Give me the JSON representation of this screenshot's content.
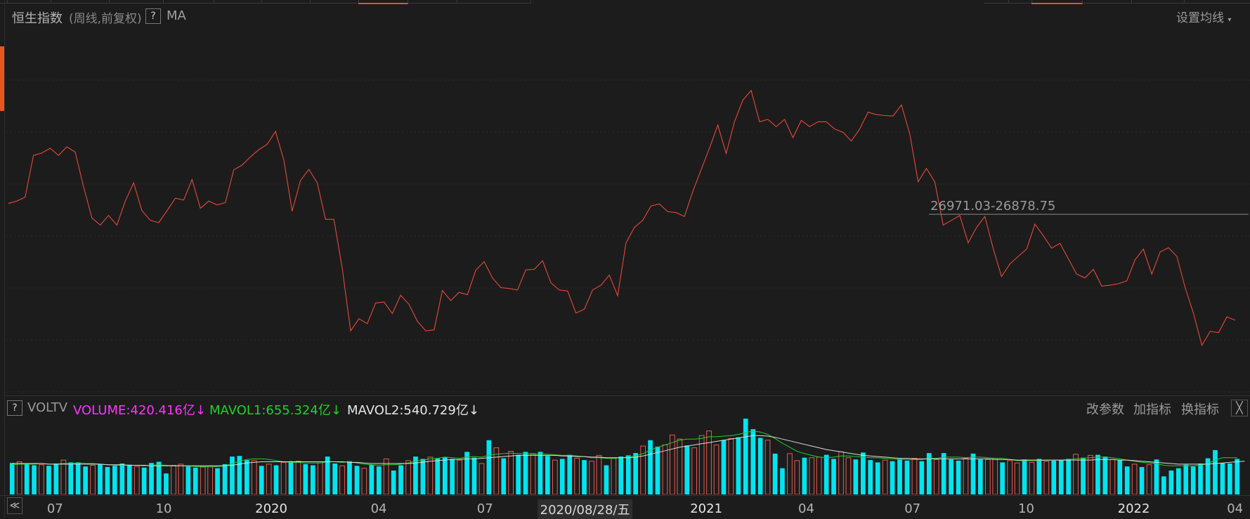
{
  "header": {
    "title": "恒生指数",
    "subtitle": "(周线,前复权)",
    "help": "?",
    "indicator": "MA",
    "settings": "设置均线"
  },
  "price_label": "26971.03-26878.75",
  "volume_panel": {
    "help": "?",
    "name": "VOLTV",
    "volume": "VOLUME:420.416亿",
    "mavol1": "MAVOL1:655.324亿",
    "mavol2": "MAVOL2:540.729亿",
    "arrow": "↓",
    "btn_params": "改参数",
    "btn_add": "加指标",
    "btn_switch": "换指标",
    "close": "╳"
  },
  "axis": {
    "scroll_left": "≪",
    "cursor_date": "2020/08/28/五"
  },
  "colors": {
    "background": "#1c1c1c",
    "price_line": "#e8483a",
    "volume_up": "#e85a50",
    "volume_down": "#00e5f0",
    "mavol1": "#22d02a",
    "mavol2": "#dcdcdc",
    "volume_label": "#ff33ff",
    "mavol1_label": "#22d02a",
    "mavol2_label": "#e6e6e6",
    "title": "#f2e6a8"
  },
  "chart_data": {
    "type": "line",
    "series": [
      {
        "name": "恒生指数",
        "values": [
          27150,
          27200,
          27280,
          28150,
          28200,
          28300,
          28150,
          28330,
          28220,
          27500,
          26850,
          26700,
          26900,
          26700,
          27200,
          27580,
          27000,
          26800,
          26750,
          27000,
          27260,
          27220,
          27650,
          27050,
          27200,
          27120,
          27170,
          27850,
          27950,
          28120,
          28270,
          28380,
          28650,
          28050,
          26990,
          27630,
          27860,
          27580,
          26820,
          26820,
          25800,
          24500,
          24750,
          24650,
          25080,
          25100,
          24860,
          25240,
          25050,
          24700,
          24500,
          24520,
          25340,
          25130,
          25300,
          25250,
          25760,
          25940,
          25600,
          25400,
          25380,
          25350,
          25770,
          25780,
          25960,
          25500,
          25350,
          25330,
          24870,
          24950,
          25350,
          25450,
          25660,
          25230,
          26330,
          26650,
          26800,
          27100,
          27140,
          26980,
          26960,
          26880,
          27400,
          27850,
          28300,
          28780,
          28190,
          28850,
          29300,
          29500,
          28850,
          28900,
          28750,
          28900,
          28520,
          28880,
          28750,
          28850,
          28850,
          28700,
          28630,
          28450,
          28700,
          29050,
          29000,
          28980,
          28970,
          29200,
          28600,
          27600,
          27880,
          27600,
          26700,
          26800,
          26900,
          26330,
          26650,
          26880,
          26210,
          25630,
          25890,
          26050,
          26200,
          26720,
          26480,
          26220,
          26320,
          26000,
          25680,
          25600,
          25780,
          25430,
          25450,
          25480,
          25540,
          25980,
          26200,
          25680,
          26140,
          26230,
          26050,
          25400,
          24860,
          24200,
          24490,
          24460,
          24790,
          24720
        ],
        "ma_start": 0
      },
      {
        "name": "VOLUME",
        "values": [
          5.4,
          5.6,
          5.3,
          5.0,
          5.1,
          4.9,
          5.3,
          5.9,
          5.5,
          5.5,
          4.8,
          5.0,
          5.2,
          4.7,
          4.9,
          5.3,
          5.1,
          4.8,
          4.6,
          5.4,
          5.6,
          3.6,
          5.0,
          5.2,
          4.8,
          4.6,
          4.7,
          4.9,
          4.5,
          5.2,
          6.5,
          6.6,
          5.9,
          5.8,
          4.9,
          5.2,
          5.0,
          5.5,
          5.7,
          5.7,
          5.2,
          5.0,
          5.6,
          6.5,
          5.3,
          4.9,
          5.7,
          4.9,
          4.5,
          5.1,
          4.8,
          6.1,
          4.1,
          5.0,
          5.8,
          6.5,
          6.1,
          6.4,
          6.2,
          6.4,
          6.1,
          5.9,
          7.3,
          6.3,
          5.3,
          9.3,
          8.0,
          6.2,
          7.4,
          6.8,
          7.3,
          7.0,
          7.3,
          6.6,
          5.9,
          6.1,
          6.8,
          6.2,
          5.9,
          5.7,
          6.7,
          5.0,
          6.2,
          6.5,
          6.7,
          7.1,
          8.3,
          9.3,
          8.2,
          8.5,
          10.2,
          9.5,
          8.4,
          8.0,
          10.1,
          10.9,
          8.5,
          9.3,
          9.6,
          9.8,
          13.0,
          11.2,
          9.7,
          9.3,
          7.0,
          4.5,
          7.0,
          5.8,
          6.3,
          6.3,
          6.4,
          6.8,
          6.1,
          7.3,
          6.3,
          6.0,
          7.2,
          5.9,
          5.5,
          5.9,
          5.7,
          6.1,
          5.8,
          6.2,
          5.7,
          7.1,
          6.0,
          7.1,
          6.0,
          5.8,
          6.2,
          7.0,
          6.0,
          6.0,
          6.2,
          5.5,
          5.8,
          5.4,
          6.0,
          5.5,
          6.1,
          5.7,
          5.8,
          5.9,
          6.1,
          6.9,
          6.3,
          6.7,
          6.8,
          6.5,
          6.0,
          5.9,
          4.8,
          5.2,
          4.7,
          5.1,
          6.0,
          3.1,
          4.1,
          4.5,
          5.1,
          4.8,
          5.3,
          6.2,
          7.6,
          5.4,
          5.3,
          6.1
        ],
        "direction": "dudduddudddudddddudddduudduudddddududududdudduddudduddudduddduddudududduddudduduududddudduuuduuuududdddudduuduudduudddduddduddudddudduuduudududddududduddudu"
      },
      {
        "name": "MAVOL1",
        "values": [
          5.1,
          5.2,
          5.2,
          5.2,
          5.3,
          5.2,
          5.2,
          5.3,
          5.3,
          5.4,
          5.3,
          5.3,
          5.2,
          5.1,
          5.0,
          5.0,
          5.0,
          5.0,
          4.9,
          5.0,
          5.1,
          5.0,
          4.9,
          4.9,
          4.9,
          4.8,
          4.8,
          4.7,
          4.8,
          4.9,
          5.3,
          5.7,
          6.0,
          6.1,
          6.1,
          6.0,
          5.8,
          5.6,
          5.5,
          5.5,
          5.4,
          5.4,
          5.4,
          5.6,
          5.6,
          5.5,
          5.6,
          5.4,
          5.2,
          5.1,
          5.0,
          5.1,
          5.1,
          5.2,
          5.4,
          5.7,
          5.9,
          6.1,
          6.2,
          6.4,
          6.3,
          6.2,
          6.4,
          6.5,
          6.4,
          6.7,
          6.9,
          7.0,
          7.1,
          7.0,
          7.0,
          6.9,
          6.9,
          6.9,
          6.8,
          6.7,
          6.7,
          6.6,
          6.5,
          6.3,
          6.3,
          6.2,
          6.2,
          6.3,
          6.4,
          6.6,
          7.0,
          7.6,
          8.1,
          8.5,
          8.9,
          9.3,
          9.5,
          9.5,
          9.6,
          9.9,
          9.9,
          10.0,
          10.1,
          10.3,
          10.6,
          10.9,
          10.7,
          10.3,
          9.6,
          8.8,
          8.1,
          7.4,
          7.0,
          6.7,
          6.4,
          6.3,
          6.4,
          6.6,
          6.6,
          6.5,
          6.4,
          6.3,
          6.3,
          6.2,
          6.1,
          6.0,
          6.0,
          6.0,
          6.0,
          6.2,
          6.2,
          6.4,
          6.4,
          6.4,
          6.3,
          6.4,
          6.4,
          6.3,
          6.2,
          6.2,
          6.0,
          5.8,
          5.8,
          5.8,
          5.8,
          5.9,
          5.9,
          5.9,
          6.0,
          6.1,
          6.2,
          6.3,
          6.4,
          6.4,
          6.3,
          6.1,
          5.9,
          5.7,
          5.5,
          5.4,
          5.3,
          5.0,
          4.9,
          4.9,
          4.9,
          4.9,
          5.0,
          5.3,
          5.9,
          6.3,
          6.3,
          6.3
        ],
        "label_value": "655.324亿"
      },
      {
        "name": "MAVOL2",
        "values": [
          5.3,
          5.3,
          5.3,
          5.3,
          5.3,
          5.2,
          5.2,
          5.2,
          5.2,
          5.2,
          5.2,
          5.2,
          5.2,
          5.1,
          5.1,
          5.1,
          5.0,
          5.0,
          5.0,
          4.9,
          4.9,
          4.9,
          4.9,
          4.9,
          4.9,
          4.9,
          4.9,
          4.9,
          4.9,
          4.9,
          5.0,
          5.2,
          5.4,
          5.5,
          5.6,
          5.6,
          5.6,
          5.6,
          5.6,
          5.6,
          5.6,
          5.6,
          5.6,
          5.6,
          5.6,
          5.6,
          5.5,
          5.5,
          5.4,
          5.3,
          5.3,
          5.3,
          5.3,
          5.3,
          5.3,
          5.4,
          5.5,
          5.7,
          5.8,
          5.9,
          6.0,
          6.0,
          6.1,
          6.1,
          6.2,
          6.3,
          6.4,
          6.5,
          6.6,
          6.7,
          6.7,
          6.7,
          6.7,
          6.7,
          6.7,
          6.6,
          6.6,
          6.5,
          6.5,
          6.4,
          6.4,
          6.3,
          6.3,
          6.3,
          6.3,
          6.4,
          6.6,
          6.9,
          7.2,
          7.5,
          7.8,
          8.1,
          8.3,
          8.5,
          8.7,
          8.9,
          9.1,
          9.3,
          9.5,
          9.7,
          9.9,
          10.1,
          10.1,
          10.0,
          9.8,
          9.5,
          9.2,
          8.9,
          8.6,
          8.3,
          8.0,
          7.7,
          7.5,
          7.3,
          7.1,
          6.9,
          6.7,
          6.6,
          6.5,
          6.4,
          6.3,
          6.2,
          6.2,
          6.1,
          6.1,
          6.1,
          6.1,
          6.1,
          6.1,
          6.1,
          6.1,
          6.1,
          6.1,
          6.1,
          6.0,
          6.0,
          6.0,
          5.9,
          5.9,
          5.9,
          5.9,
          5.9,
          5.9,
          5.9,
          5.9,
          5.9,
          5.9,
          5.9,
          6.0,
          6.0,
          6.0,
          5.9,
          5.9,
          5.8,
          5.7,
          5.6,
          5.5,
          5.4,
          5.3,
          5.2,
          5.2,
          5.2,
          5.2,
          5.2,
          5.3,
          5.4,
          5.5,
          5.6,
          5.7
        ],
        "label_value": "540.729亿"
      }
    ],
    "x_ticks": [
      {
        "label": "07",
        "year": false,
        "frac": 0.044
      },
      {
        "label": "10",
        "year": false,
        "frac": 0.131
      },
      {
        "label": "2020",
        "year": true,
        "frac": 0.217
      },
      {
        "label": "04",
        "year": false,
        "frac": 0.303
      },
      {
        "label": "07",
        "year": false,
        "frac": 0.388
      },
      {
        "label": "2021",
        "year": true,
        "frac": 0.565
      },
      {
        "label": "04",
        "year": false,
        "frac": 0.645
      },
      {
        "label": "07",
        "year": false,
        "frac": 0.73
      },
      {
        "label": "10",
        "year": false,
        "frac": 0.821
      },
      {
        "label": "2022",
        "year": true,
        "frac": 0.907
      },
      {
        "label": "04",
        "year": false,
        "frac": 0.988
      }
    ],
    "cursor_frac": 0.468,
    "price_ylim": [
      23200,
      30800
    ],
    "volume_ylim": [
      0,
      13.5
    ],
    "price_marker": {
      "value": 26925,
      "from_frac": 0.742,
      "label": "26971.03-26878.75"
    }
  }
}
